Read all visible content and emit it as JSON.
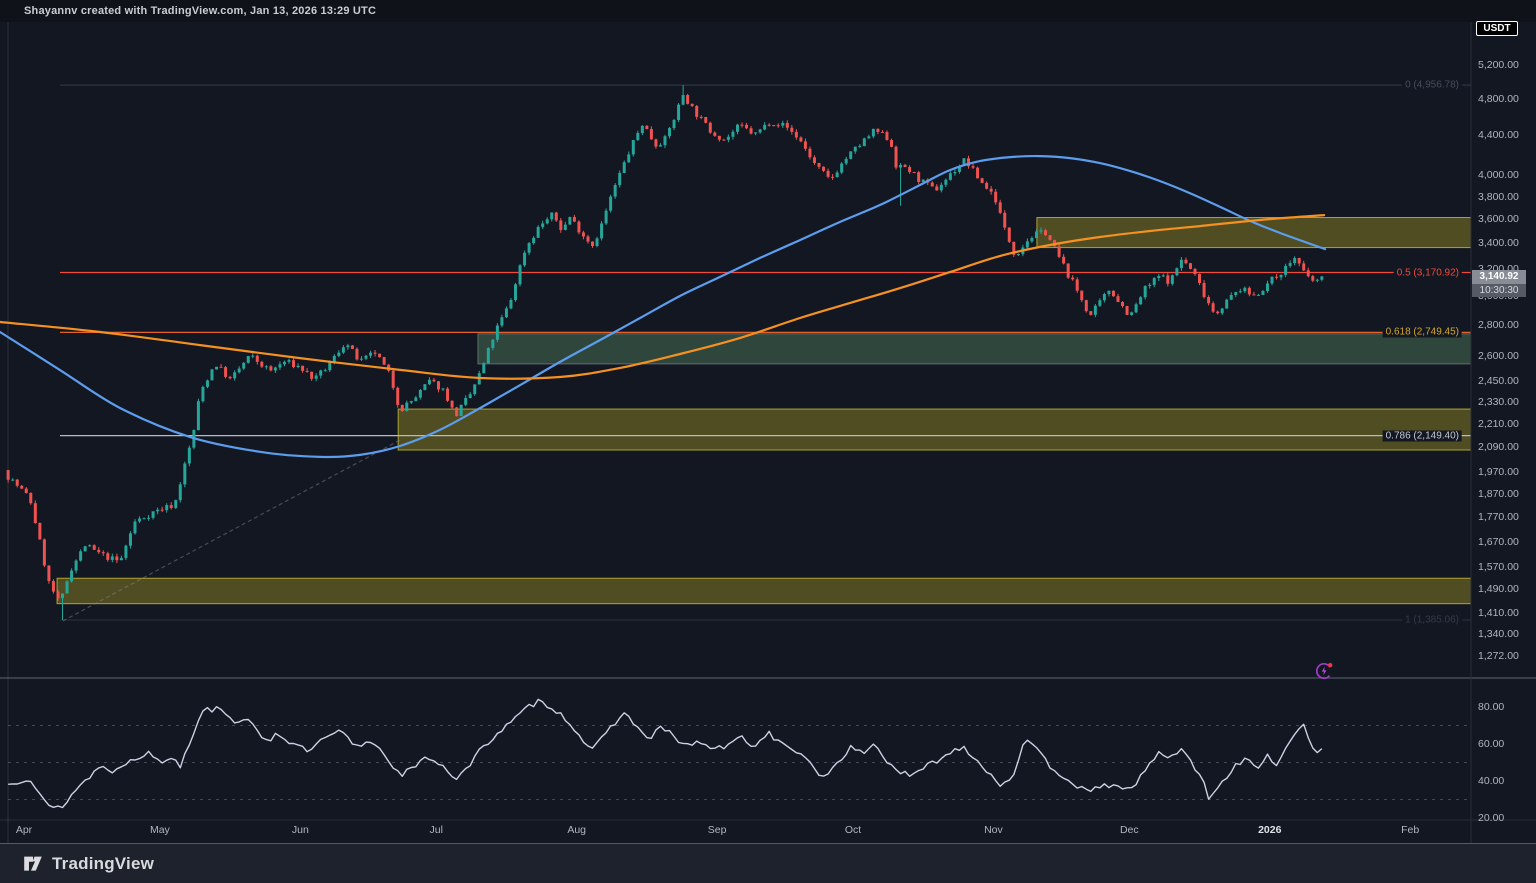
{
  "header": {
    "attribution": "Shayannv created with TradingView.com, Jan 13, 2026 13:29 UTC"
  },
  "symbol_badge": "USDT",
  "footer": {
    "logo_text": "TradingView"
  },
  "price_axis": {
    "labels": [
      "5,200.00",
      "4,800.00",
      "4,400.00",
      "4,000.00",
      "3,800.00",
      "3,600.00",
      "3,400.00",
      "3,200.00",
      "3,000.00",
      "2,800.00",
      "2,600.00",
      "2,450.00",
      "2,330.00",
      "2,210.00",
      "2,090.00",
      "1,970.00",
      "1,870.00",
      "1,770.00",
      "1,670.00",
      "1,570.00",
      "1,490.00",
      "1,410.00",
      "1,340.00",
      "1,272.00"
    ],
    "current_price": "3,140.92",
    "countdown": "10:30:30"
  },
  "rsi_axis": {
    "labels": [
      "80.00",
      "60.00",
      "40.00",
      "20.00"
    ]
  },
  "time_axis": {
    "months": [
      {
        "label": "Apr",
        "day": 0
      },
      {
        "label": "May",
        "day": 30
      },
      {
        "label": "Jun",
        "day": 61
      },
      {
        "label": "Jul",
        "day": 91
      },
      {
        "label": "Aug",
        "day": 122
      },
      {
        "label": "Sep",
        "day": 153
      },
      {
        "label": "Oct",
        "day": 183
      },
      {
        "label": "Nov",
        "day": 214
      },
      {
        "label": "Dec",
        "day": 244
      },
      {
        "label": "2026",
        "day": 275,
        "bold": true
      },
      {
        "label": "Feb",
        "day": 306
      }
    ]
  },
  "colors": {
    "background": "#131722",
    "up_candle": "#26a69a",
    "down_candle": "#ef5350",
    "ma_blue": "#5c9ded",
    "ma_orange": "#f59120",
    "rsi_line": "#ccd1e3",
    "zone_olive_fill": "rgba(173,159,38,0.40)",
    "zone_olive_border": "rgba(196,182,50,0.85)",
    "zone_green_fill": "rgba(105,168,117,0.33)",
    "zone_green_border": "rgba(170,180,185,0.45)",
    "fib0_line": "#2d3340",
    "fib05_line": "#ef4a3c",
    "fib618_line": "#e2622f",
    "fib786_line": "#b6bac3",
    "fib1_line": "#272c38"
  },
  "chart_data": {
    "type": "candlestick",
    "quote_currency": "USDT",
    "y_scale": "log",
    "last_price": 3140.92,
    "fib_levels": [
      {
        "level": "0",
        "price": 4956.78,
        "label": "0 (4,956.78)",
        "label_color": "#454c5a",
        "line_color": "#2d3340"
      },
      {
        "level": "0.5",
        "price": 3170.92,
        "label": "0.5 (3,170.92)",
        "label_color": "#ef4a3c",
        "line_color": "#ef4a3c"
      },
      {
        "level": "0.618",
        "price": 2749.45,
        "label": "0.618 (2,749.45)",
        "label_color": "#d2a62e",
        "line_color": "#e2622f"
      },
      {
        "level": "0.786",
        "price": 2149.4,
        "label": "0.786 (2,149.40)",
        "label_color": "#c3c7cf",
        "line_color": "#b6bac3"
      },
      {
        "level": "1",
        "price": 1385.06,
        "label": "1 (1,385.06)",
        "label_color": "#333a49",
        "line_color": "#272c38"
      }
    ],
    "zones": [
      {
        "name": "resistance-upper",
        "day_start": 223.6,
        "price_top": 3615,
        "price_bottom": 3365,
        "style": "olive"
      },
      {
        "name": "support-green",
        "day_start": 100.2,
        "price_top": 2740,
        "price_bottom": 2550,
        "style": "green"
      },
      {
        "name": "support-mid",
        "day_start": 82.6,
        "price_top": 2290,
        "price_bottom": 2077,
        "style": "olive"
      },
      {
        "name": "support-lower",
        "day_start": 7.3,
        "price_top": 1530,
        "price_bottom": 1440,
        "style": "olive"
      }
    ],
    "trend_line": {
      "points": [
        [
          8.6,
          1382
        ],
        [
          83,
          2127
        ]
      ]
    },
    "candles": {
      "day_start": -3.5,
      "day_end": 287,
      "step": 1,
      "close_path": [
        [
          -4.5,
          1980
        ],
        [
          -3.5,
          1950
        ],
        [
          1.3,
          1850
        ],
        [
          5.3,
          1520
        ],
        [
          7.9,
          1435
        ],
        [
          10.2,
          1560
        ],
        [
          13.5,
          1655
        ],
        [
          16.8,
          1620
        ],
        [
          19,
          1605
        ],
        [
          21.2,
          1590
        ],
        [
          24.5,
          1750
        ],
        [
          28.9,
          1795
        ],
        [
          33.3,
          1825
        ],
        [
          37.3,
          2150
        ],
        [
          38.9,
          2380
        ],
        [
          42.2,
          2555
        ],
        [
          45.5,
          2455
        ],
        [
          49.9,
          2600
        ],
        [
          54.3,
          2505
        ],
        [
          57.6,
          2565
        ],
        [
          60.9,
          2530
        ],
        [
          64.2,
          2455
        ],
        [
          67.5,
          2550
        ],
        [
          70.9,
          2685
        ],
        [
          74.2,
          2560
        ],
        [
          77.5,
          2620
        ],
        [
          80.8,
          2480
        ],
        [
          83,
          2285
        ],
        [
          86.3,
          2350
        ],
        [
          89.6,
          2450
        ],
        [
          92.9,
          2390
        ],
        [
          95.1,
          2250
        ],
        [
          98.5,
          2370
        ],
        [
          101.1,
          2520
        ],
        [
          104,
          2750
        ],
        [
          107.3,
          2950
        ],
        [
          110.6,
          3350
        ],
        [
          113.9,
          3550
        ],
        [
          116.8,
          3640
        ],
        [
          118.8,
          3505
        ],
        [
          120.5,
          3620
        ],
        [
          123.8,
          3450
        ],
        [
          125.6,
          3385
        ],
        [
          127.2,
          3520
        ],
        [
          130.5,
          3900
        ],
        [
          133.8,
          4250
        ],
        [
          136.6,
          4530
        ],
        [
          139.3,
          4300
        ],
        [
          141.5,
          4355
        ],
        [
          143.7,
          4600
        ],
        [
          145.5,
          4850
        ],
        [
          148.1,
          4650
        ],
        [
          151.4,
          4450
        ],
        [
          154.7,
          4350
        ],
        [
          158,
          4500
        ],
        [
          161.4,
          4405
        ],
        [
          164.7,
          4550
        ],
        [
          168,
          4500
        ],
        [
          171.3,
          4350
        ],
        [
          174.6,
          4100
        ],
        [
          177.9,
          3950
        ],
        [
          181.2,
          4150
        ],
        [
          184.5,
          4300
        ],
        [
          187.9,
          4450
        ],
        [
          191.2,
          4350
        ],
        [
          192.7,
          4060
        ],
        [
          194.5,
          4080
        ],
        [
          197.8,
          3950
        ],
        [
          201.1,
          3855
        ],
        [
          204.4,
          4000
        ],
        [
          207.7,
          4150
        ],
        [
          211,
          3950
        ],
        [
          214.3,
          3800
        ],
        [
          216.6,
          3500
        ],
        [
          218.8,
          3305
        ],
        [
          222.1,
          3450
        ],
        [
          225.4,
          3500
        ],
        [
          227.6,
          3350
        ],
        [
          229.8,
          3200
        ],
        [
          233.1,
          3000
        ],
        [
          235.3,
          2855
        ],
        [
          237.5,
          2950
        ],
        [
          239.7,
          3050
        ],
        [
          241.9,
          2950
        ],
        [
          244.2,
          2855
        ],
        [
          247.5,
          3050
        ],
        [
          250.8,
          3150
        ],
        [
          253,
          3100
        ],
        [
          255.6,
          3280
        ],
        [
          258.5,
          3150
        ],
        [
          260.7,
          3000
        ],
        [
          262.9,
          2870
        ],
        [
          265.1,
          2950
        ],
        [
          268.4,
          3050
        ],
        [
          271.7,
          3000
        ],
        [
          275,
          3100
        ],
        [
          278.3,
          3200
        ],
        [
          280.6,
          3290
        ],
        [
          282.8,
          3150
        ],
        [
          285,
          3100
        ],
        [
          286.8,
          3140.92
        ]
      ],
      "wick_overrides": [
        {
          "day": 8.5,
          "low": 1385.06
        },
        {
          "day": 145.5,
          "high": 4956.78
        },
        {
          "day": 193.5,
          "low": 3718
        }
      ]
    },
    "moving_averages": [
      {
        "name": "ma-blue",
        "color": "#5c9ded",
        "points": [
          [
            -5.3,
            2752
          ],
          [
            7.9,
            2514
          ],
          [
            21.2,
            2296
          ],
          [
            36.6,
            2143
          ],
          [
            52.1,
            2068
          ],
          [
            65.3,
            2043
          ],
          [
            74.2,
            2053
          ],
          [
            83,
            2097
          ],
          [
            91.8,
            2179
          ],
          [
            100.7,
            2296
          ],
          [
            109.5,
            2424
          ],
          [
            118.3,
            2562
          ],
          [
            127.2,
            2700
          ],
          [
            136,
            2845
          ],
          [
            144.8,
            2998
          ],
          [
            153.6,
            3137
          ],
          [
            162.5,
            3283
          ],
          [
            171.3,
            3426
          ],
          [
            180.1,
            3577
          ],
          [
            189,
            3725
          ],
          [
            197.8,
            3906
          ],
          [
            204.4,
            4048
          ],
          [
            211,
            4135
          ],
          [
            217.7,
            4175
          ],
          [
            224.3,
            4185
          ],
          [
            230.9,
            4165
          ],
          [
            237.5,
            4116
          ],
          [
            244.2,
            4038
          ],
          [
            250.8,
            3943
          ],
          [
            257.4,
            3831
          ],
          [
            264.1,
            3707
          ],
          [
            270.7,
            3585
          ],
          [
            277.3,
            3484
          ],
          [
            287.2,
            3353
          ]
        ]
      },
      {
        "name": "ma-orange",
        "color": "#f59120",
        "points": [
          [
            -5.3,
            2818
          ],
          [
            16.8,
            2752
          ],
          [
            38.9,
            2667
          ],
          [
            60.9,
            2586
          ],
          [
            83,
            2514
          ],
          [
            100.7,
            2466
          ],
          [
            118.3,
            2472
          ],
          [
            131.6,
            2526
          ],
          [
            144.8,
            2611
          ],
          [
            158.1,
            2713
          ],
          [
            171.3,
            2845
          ],
          [
            182.3,
            2948
          ],
          [
            193.4,
            3055
          ],
          [
            204.4,
            3174
          ],
          [
            215.5,
            3299
          ],
          [
            226.5,
            3386
          ],
          [
            237.5,
            3451
          ],
          [
            248.6,
            3501
          ],
          [
            259.6,
            3542
          ],
          [
            272.8,
            3594
          ],
          [
            287,
            3636
          ]
        ]
      }
    ],
    "rsi": {
      "dashed_levels": [
        70,
        50,
        30
      ],
      "points": [
        [
          -3.5,
          38
        ],
        [
          1.3,
          42
        ],
        [
          5.7,
          25
        ],
        [
          8.4,
          26
        ],
        [
          11.3,
          35
        ],
        [
          16.8,
          48
        ],
        [
          20.1,
          45
        ],
        [
          23.4,
          52
        ],
        [
          27.8,
          55
        ],
        [
          30,
          50
        ],
        [
          32.7,
          53
        ],
        [
          34.4,
          48
        ],
        [
          37.7,
          68
        ],
        [
          40,
          82
        ],
        [
          41.5,
          78
        ],
        [
          43.7,
          80
        ],
        [
          45.9,
          72
        ],
        [
          48.8,
          74
        ],
        [
          51.7,
          66
        ],
        [
          53.9,
          62
        ],
        [
          56.1,
          66
        ],
        [
          59.2,
          60
        ],
        [
          62.7,
          56
        ],
        [
          66.4,
          63
        ],
        [
          70.2,
          67
        ],
        [
          73.1,
          58
        ],
        [
          76.8,
          62
        ],
        [
          80.4,
          52
        ],
        [
          83,
          43
        ],
        [
          85.9,
          47
        ],
        [
          89.2,
          53
        ],
        [
          92.3,
          49
        ],
        [
          95.1,
          41
        ],
        [
          98,
          47
        ],
        [
          101.1,
          58
        ],
        [
          104.6,
          66
        ],
        [
          107.7,
          72
        ],
        [
          111.3,
          80
        ],
        [
          113.5,
          83
        ],
        [
          116.6,
          80
        ],
        [
          119.4,
          74
        ],
        [
          122.3,
          66
        ],
        [
          125.4,
          56
        ],
        [
          128.9,
          67
        ],
        [
          132.2,
          77
        ],
        [
          134.9,
          71
        ],
        [
          137.7,
          62
        ],
        [
          140.4,
          69
        ],
        [
          143,
          65
        ],
        [
          145.9,
          59
        ],
        [
          149.2,
          61
        ],
        [
          152.5,
          57
        ],
        [
          155.4,
          59
        ],
        [
          158.5,
          64
        ],
        [
          161.4,
          58
        ],
        [
          164.2,
          67
        ],
        [
          166.9,
          60
        ],
        [
          170.2,
          57
        ],
        [
          173.1,
          50
        ],
        [
          176.2,
          42
        ],
        [
          179,
          48
        ],
        [
          182.3,
          58
        ],
        [
          185,
          55
        ],
        [
          187.9,
          60
        ],
        [
          190.7,
          50
        ],
        [
          193.4,
          45
        ],
        [
          196,
          42
        ],
        [
          199.1,
          48
        ],
        [
          202.2,
          52
        ],
        [
          204.9,
          56
        ],
        [
          207.3,
          59
        ],
        [
          210,
          52
        ],
        [
          212.8,
          45
        ],
        [
          215.5,
          38
        ],
        [
          218.1,
          42
        ],
        [
          221,
          62
        ],
        [
          223.8,
          56
        ],
        [
          226.9,
          47
        ],
        [
          229.8,
          42
        ],
        [
          232.7,
          37
        ],
        [
          235.3,
          33
        ],
        [
          238.2,
          39
        ],
        [
          241.3,
          36
        ],
        [
          244.2,
          35
        ],
        [
          247.5,
          46
        ],
        [
          250.3,
          55
        ],
        [
          253,
          52
        ],
        [
          255.6,
          58
        ],
        [
          257.8,
          49
        ],
        [
          260,
          43
        ],
        [
          261.8,
          29
        ],
        [
          264.5,
          40
        ],
        [
          267.3,
          48
        ],
        [
          270.2,
          52
        ],
        [
          272.4,
          47
        ],
        [
          274.6,
          55
        ],
        [
          276.2,
          45
        ],
        [
          278.3,
          58
        ],
        [
          280.6,
          66
        ],
        [
          282.1,
          72
        ],
        [
          283.9,
          60
        ],
        [
          285.7,
          54
        ],
        [
          286.6,
          57
        ]
      ]
    }
  }
}
